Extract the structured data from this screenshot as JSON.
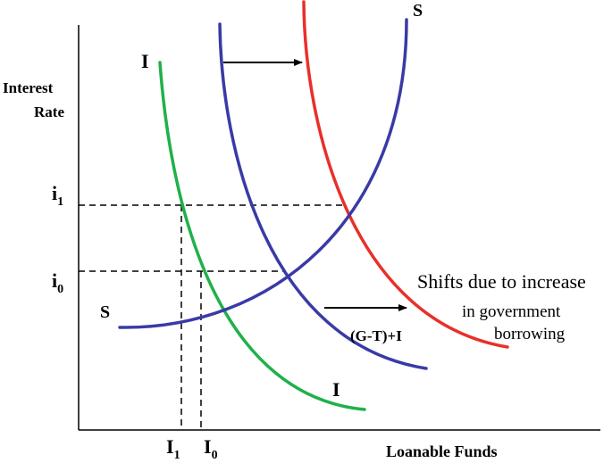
{
  "axes": {
    "y_label_line1": "Interest",
    "y_label_line2": "Rate",
    "x_label": "Loanable Funds"
  },
  "rate_ticks": [
    {
      "id": "i1",
      "main": "i",
      "sub": "1"
    },
    {
      "id": "i0",
      "main": "i",
      "sub": "0"
    }
  ],
  "quantity_ticks": [
    {
      "id": "I1",
      "main": "I",
      "sub": "1"
    },
    {
      "id": "I0",
      "main": "I",
      "sub": "0"
    }
  ],
  "curves": {
    "saving": {
      "label": "S",
      "color": "#3a3aa6"
    },
    "investment": {
      "label": "I",
      "color": "#1fb14a"
    },
    "investment_plus_deficit": {
      "label": "(G-T)+I",
      "blue_color": "#3a3aa6",
      "red_color": "#e8302a"
    }
  },
  "annotation": {
    "line1": "Shifts due to increase",
    "line2": "in government",
    "line3": "borrowing"
  },
  "colors": {
    "axis": "#000000",
    "guide": "#000000",
    "arrow": "#000000"
  }
}
